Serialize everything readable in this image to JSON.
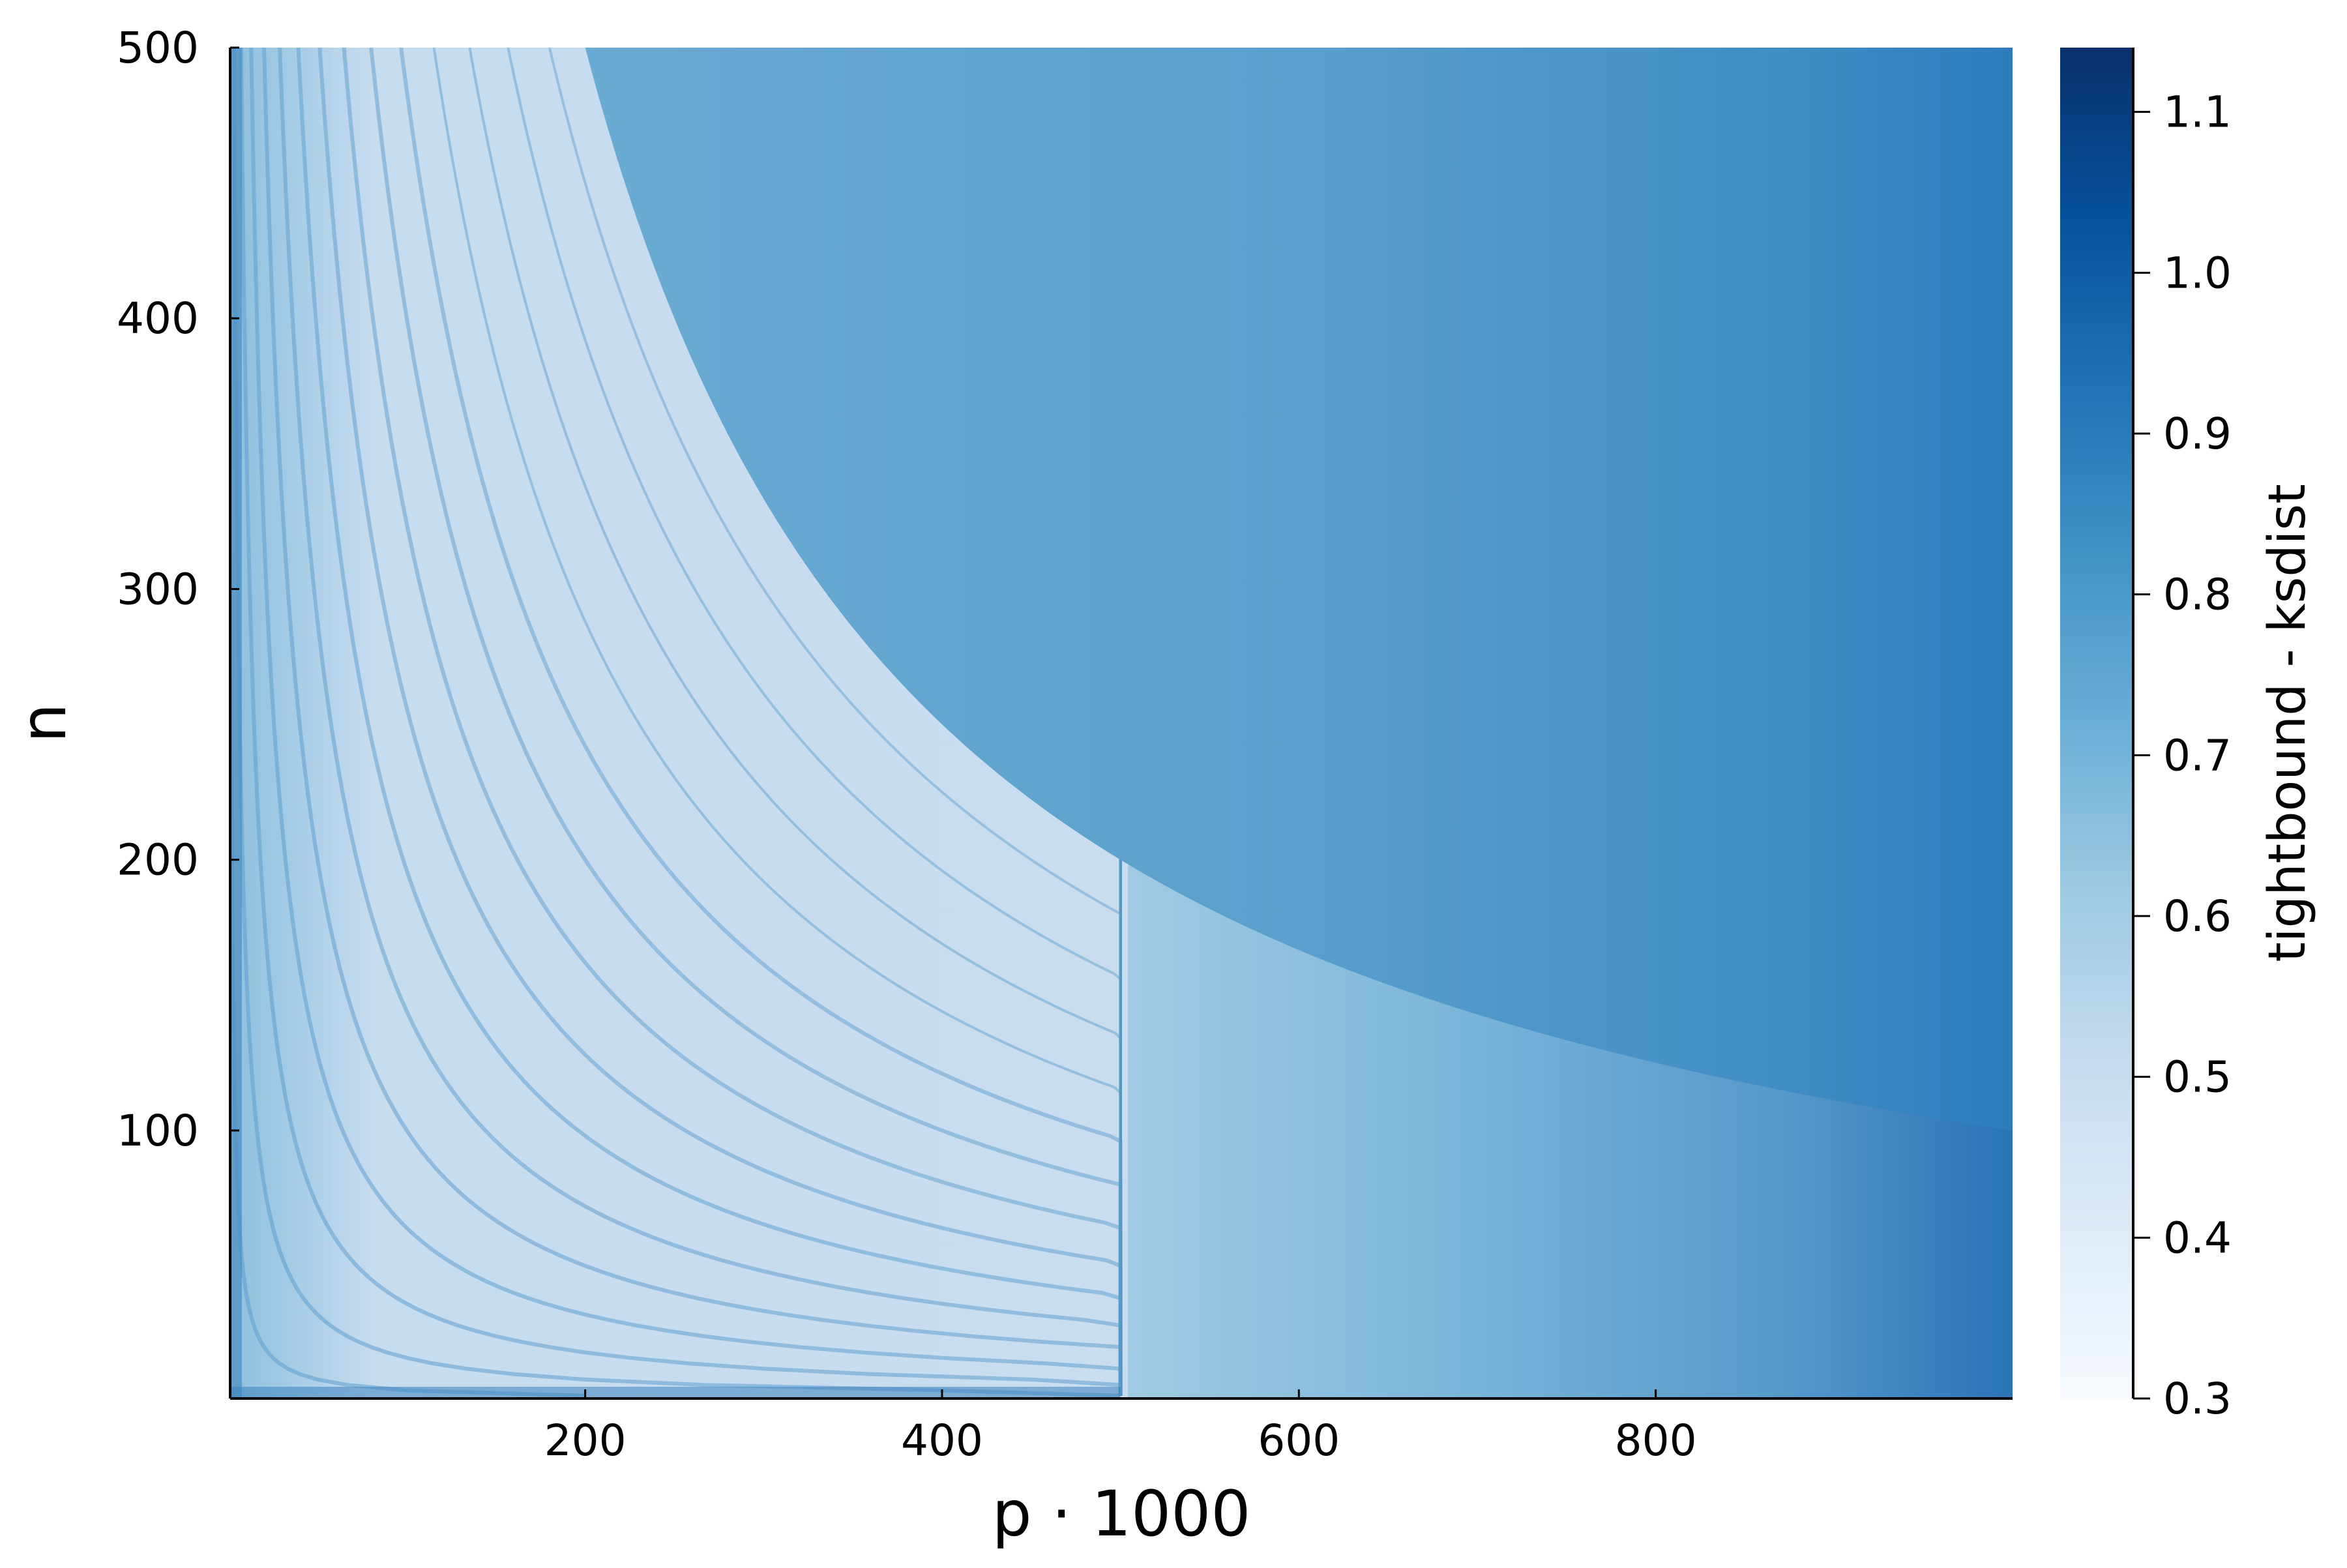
{
  "chart_data": {
    "type": "heatmap",
    "title": "",
    "xlabel": "p · 1000",
    "ylabel": "n",
    "xlim": [
      1,
      1000
    ],
    "ylim": [
      1,
      500
    ],
    "x_ticks": [
      200,
      400,
      600,
      800
    ],
    "y_ticks": [
      100,
      200,
      300,
      400,
      500
    ],
    "grid": false,
    "colorbar": {
      "label": "tightbound - ksdist",
      "range": [
        0.3,
        1.14
      ],
      "ticks": [
        "0.3",
        "0.4",
        "0.5",
        "0.6",
        "0.7",
        "0.8",
        "0.9",
        "1.0",
        "1.1"
      ],
      "colormap": "Blues",
      "colors": [
        "#f7fbff",
        "#deebf7",
        "#c6dbef",
        "#9ecae1",
        "#6baed6",
        "#4292c6",
        "#2171b5",
        "#08519c",
        "#08306b"
      ]
    },
    "regions": [
      {
        "name": "low-p region (below curve n·p ≈ 100000, p < 500)",
        "approx_value": 0.5
      },
      {
        "name": "upper-right region (above curve)",
        "approx_value_range": [
          0.75,
          0.88
        ]
      },
      {
        "name": "lower-right band (p > 500, below curve)",
        "approx_value_range": [
          0.65,
          0.85
        ]
      }
    ],
    "boundary_curve": {
      "description": "n = 100000 / p",
      "points": [
        [
          200,
          500
        ],
        [
          250,
          400
        ],
        [
          333,
          300
        ],
        [
          500,
          200
        ],
        [
          800,
          125
        ],
        [
          1000,
          100
        ]
      ]
    },
    "vertical_edge_p": 500,
    "vertical_edge_n_range": [
      1,
      200
    ]
  }
}
